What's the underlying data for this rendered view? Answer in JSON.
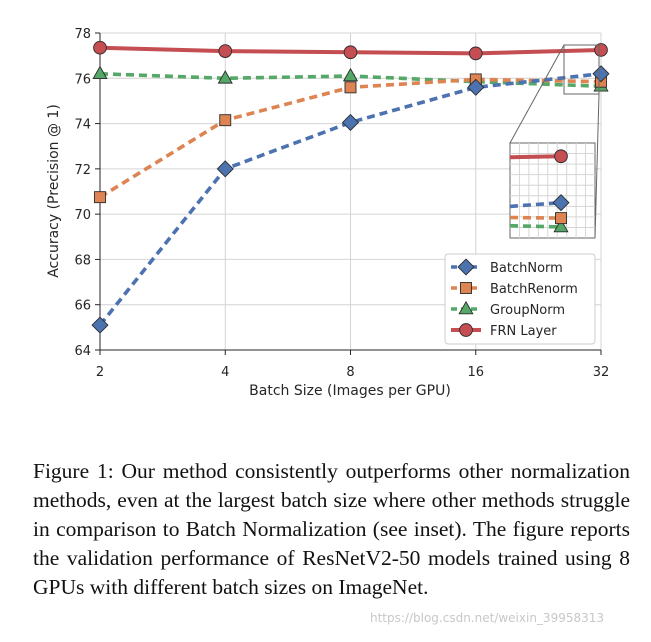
{
  "chart_data": {
    "type": "line",
    "xlabel": "Batch Size (Images per GPU)",
    "ylabel": "Accuracy (Precision @ 1)",
    "x": [
      2,
      4,
      8,
      16,
      32
    ],
    "xscale": "log2",
    "ylim": [
      64,
      78
    ],
    "yticks": [
      64,
      66,
      68,
      70,
      72,
      74,
      76,
      78
    ],
    "grid": true,
    "legend_position": "lower-right",
    "series": [
      {
        "name": "BatchNorm",
        "values": [
          65.1,
          72.0,
          74.05,
          75.6,
          76.2
        ],
        "color": "#4c72b0",
        "marker": "diamond",
        "dash": "dashed"
      },
      {
        "name": "BatchRenorm",
        "values": [
          70.75,
          74.15,
          75.6,
          75.95,
          75.85
        ],
        "color": "#dd8452",
        "marker": "square",
        "dash": "dashed"
      },
      {
        "name": "GroupNorm",
        "values": [
          76.2,
          76.0,
          76.1,
          75.85,
          75.65
        ],
        "color": "#55a868",
        "marker": "triangle",
        "dash": "dashed"
      },
      {
        "name": "FRN Layer",
        "values": [
          77.35,
          77.2,
          77.15,
          77.1,
          77.25
        ],
        "color": "#c44e52",
        "marker": "circle",
        "dash": "solid"
      }
    ],
    "inset": {
      "xlim": [
        29,
        34
      ],
      "ylim": [
        75.4,
        77.55
      ],
      "description": "zoom at batch size 32"
    }
  },
  "caption": "Figure 1: Our method consistently outperforms other normalization methods, even at the largest batch size where other methods struggle in comparison to Batch Normalization (see inset). The figure reports the validation performance of ResNetV2-50 models trained using 8 GPUs with different batch sizes on ImageNet.",
  "watermark": "https://blog.csdn.net/weixin_39958313"
}
